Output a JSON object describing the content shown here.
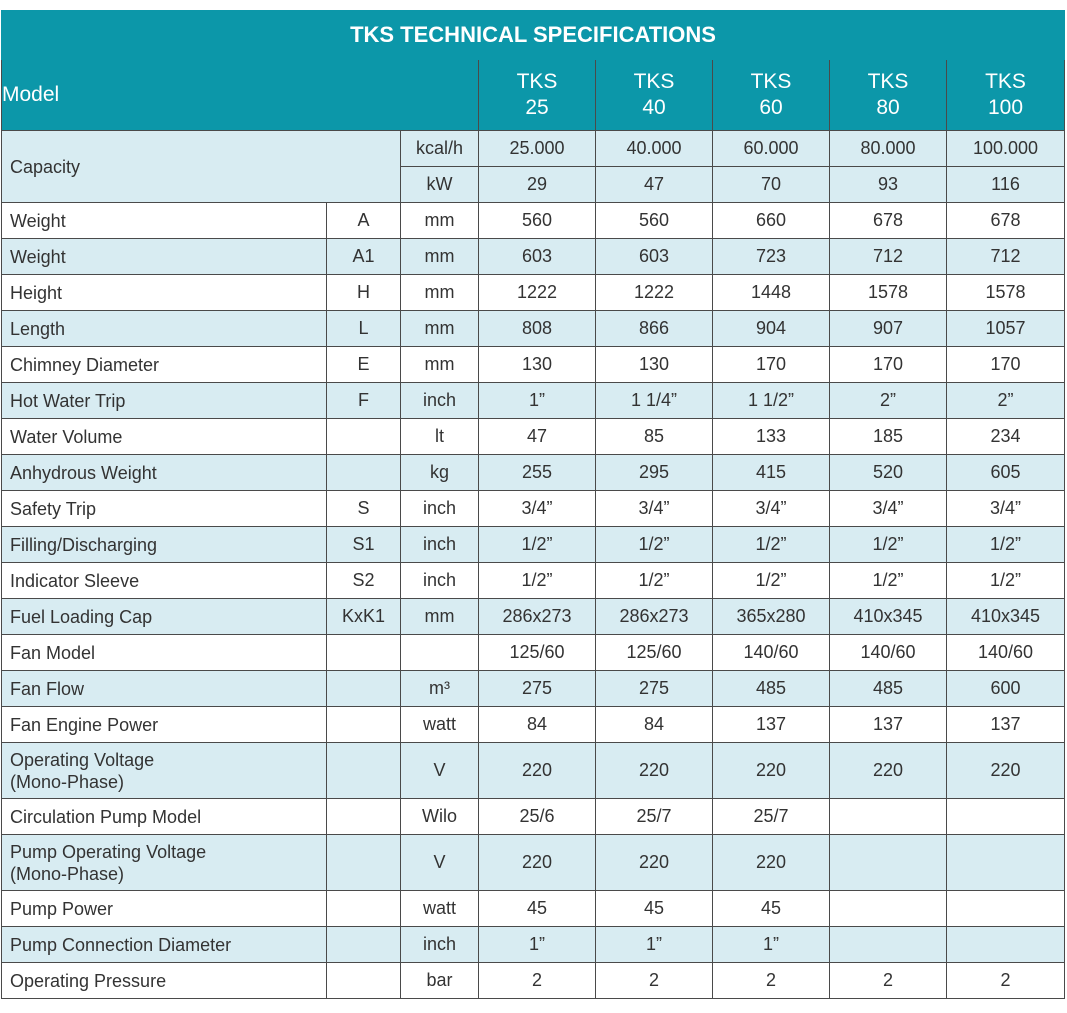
{
  "title": "TKS TECHNICAL SPECIFICATIONS",
  "model_label": "Model",
  "models": [
    {
      "line1": "TKS",
      "line2": "25"
    },
    {
      "line1": "TKS",
      "line2": "40"
    },
    {
      "line1": "TKS",
      "line2": "60"
    },
    {
      "line1": "TKS",
      "line2": "80"
    },
    {
      "line1": "TKS",
      "line2": "100"
    }
  ],
  "capacity": {
    "name": "Capacity",
    "rows": [
      {
        "unit": "kcal/h",
        "values": [
          "25.000",
          "40.000",
          "60.000",
          "80.000",
          "100.000"
        ]
      },
      {
        "unit": "kW",
        "values": [
          "29",
          "47",
          "70",
          "93",
          "116"
        ]
      }
    ]
  },
  "rows": [
    {
      "name": "Weight",
      "symbol": "A",
      "unit": "mm",
      "values": [
        "560",
        "560",
        "660",
        "678",
        "678"
      ]
    },
    {
      "name": "Weight",
      "symbol": "A1",
      "unit": "mm",
      "values": [
        "603",
        "603",
        "723",
        "712",
        "712"
      ]
    },
    {
      "name": "Height",
      "symbol": "H",
      "unit": "mm",
      "values": [
        "1222",
        "1222",
        "1448",
        "1578",
        "1578"
      ]
    },
    {
      "name": "Length",
      "symbol": "L",
      "unit": "mm",
      "values": [
        "808",
        "866",
        "904",
        "907",
        "1057"
      ]
    },
    {
      "name": "Chimney Diameter",
      "symbol": "E",
      "unit": "mm",
      "values": [
        "130",
        "130",
        "170",
        "170",
        "170"
      ]
    },
    {
      "name": "Hot Water Trip",
      "symbol": "F",
      "unit": "inch",
      "values": [
        "1”",
        "1 1/4”",
        "1 1/2”",
        "2”",
        "2”"
      ]
    },
    {
      "name": "Water Volume",
      "symbol": "",
      "unit": "lt",
      "values": [
        "47",
        "85",
        "133",
        "185",
        "234"
      ]
    },
    {
      "name": "Anhydrous Weight",
      "symbol": "",
      "unit": "kg",
      "values": [
        "255",
        "295",
        "415",
        "520",
        "605"
      ]
    },
    {
      "name": "Safety Trip",
      "symbol": "S",
      "unit": "inch",
      "values": [
        "3/4”",
        "3/4”",
        "3/4”",
        "3/4”",
        "3/4”"
      ]
    },
    {
      "name": "Filling/Discharging",
      "symbol": "S1",
      "unit": "inch",
      "values": [
        "1/2”",
        "1/2”",
        "1/2”",
        "1/2”",
        "1/2”"
      ]
    },
    {
      "name": "Indicator Sleeve",
      "symbol": "S2",
      "unit": "inch",
      "values": [
        "1/2”",
        "1/2”",
        "1/2”",
        "1/2”",
        "1/2”"
      ]
    },
    {
      "name": "Fuel Loading Cap",
      "symbol": "KxK1",
      "unit": "mm",
      "values": [
        "286x273",
        "286x273",
        "365x280",
        "410x345",
        "410x345"
      ]
    },
    {
      "name": "Fan Model",
      "symbol": "",
      "unit": "",
      "values": [
        "125/60",
        "125/60",
        "140/60",
        "140/60",
        "140/60"
      ]
    },
    {
      "name": "Fan Flow",
      "symbol": "",
      "unit": "m³",
      "values": [
        "275",
        "275",
        "485",
        "485",
        "600"
      ]
    },
    {
      "name": "Fan Engine Power",
      "symbol": "",
      "unit": "watt",
      "values": [
        "84",
        "84",
        "137",
        "137",
        "137"
      ]
    },
    {
      "name": "Operating Voltage",
      "name2": "(Mono-Phase)",
      "symbol": "",
      "unit": "V",
      "values": [
        "220",
        "220",
        "220",
        "220",
        "220"
      ]
    },
    {
      "name": "Circulation Pump Model",
      "symbol": "",
      "unit": "Wilo",
      "values": [
        "25/6",
        "25/7",
        "25/7",
        "",
        ""
      ]
    },
    {
      "name": "Pump Operating Voltage",
      "name2": "(Mono-Phase)",
      "symbol": "",
      "unit": "V",
      "values": [
        "220",
        "220",
        "220",
        "",
        ""
      ]
    },
    {
      "name": "Pump Power",
      "symbol": "",
      "unit": "watt",
      "values": [
        "45",
        "45",
        "45",
        "",
        ""
      ]
    },
    {
      "name": "Pump Connection Diameter",
      "symbol": "",
      "unit": "inch",
      "values": [
        "1”",
        "1”",
        "1”",
        "",
        ""
      ]
    },
    {
      "name": "Operating Pressure",
      "symbol": "",
      "unit": "bar",
      "values": [
        "2",
        "2",
        "2",
        "2",
        "2"
      ]
    }
  ]
}
